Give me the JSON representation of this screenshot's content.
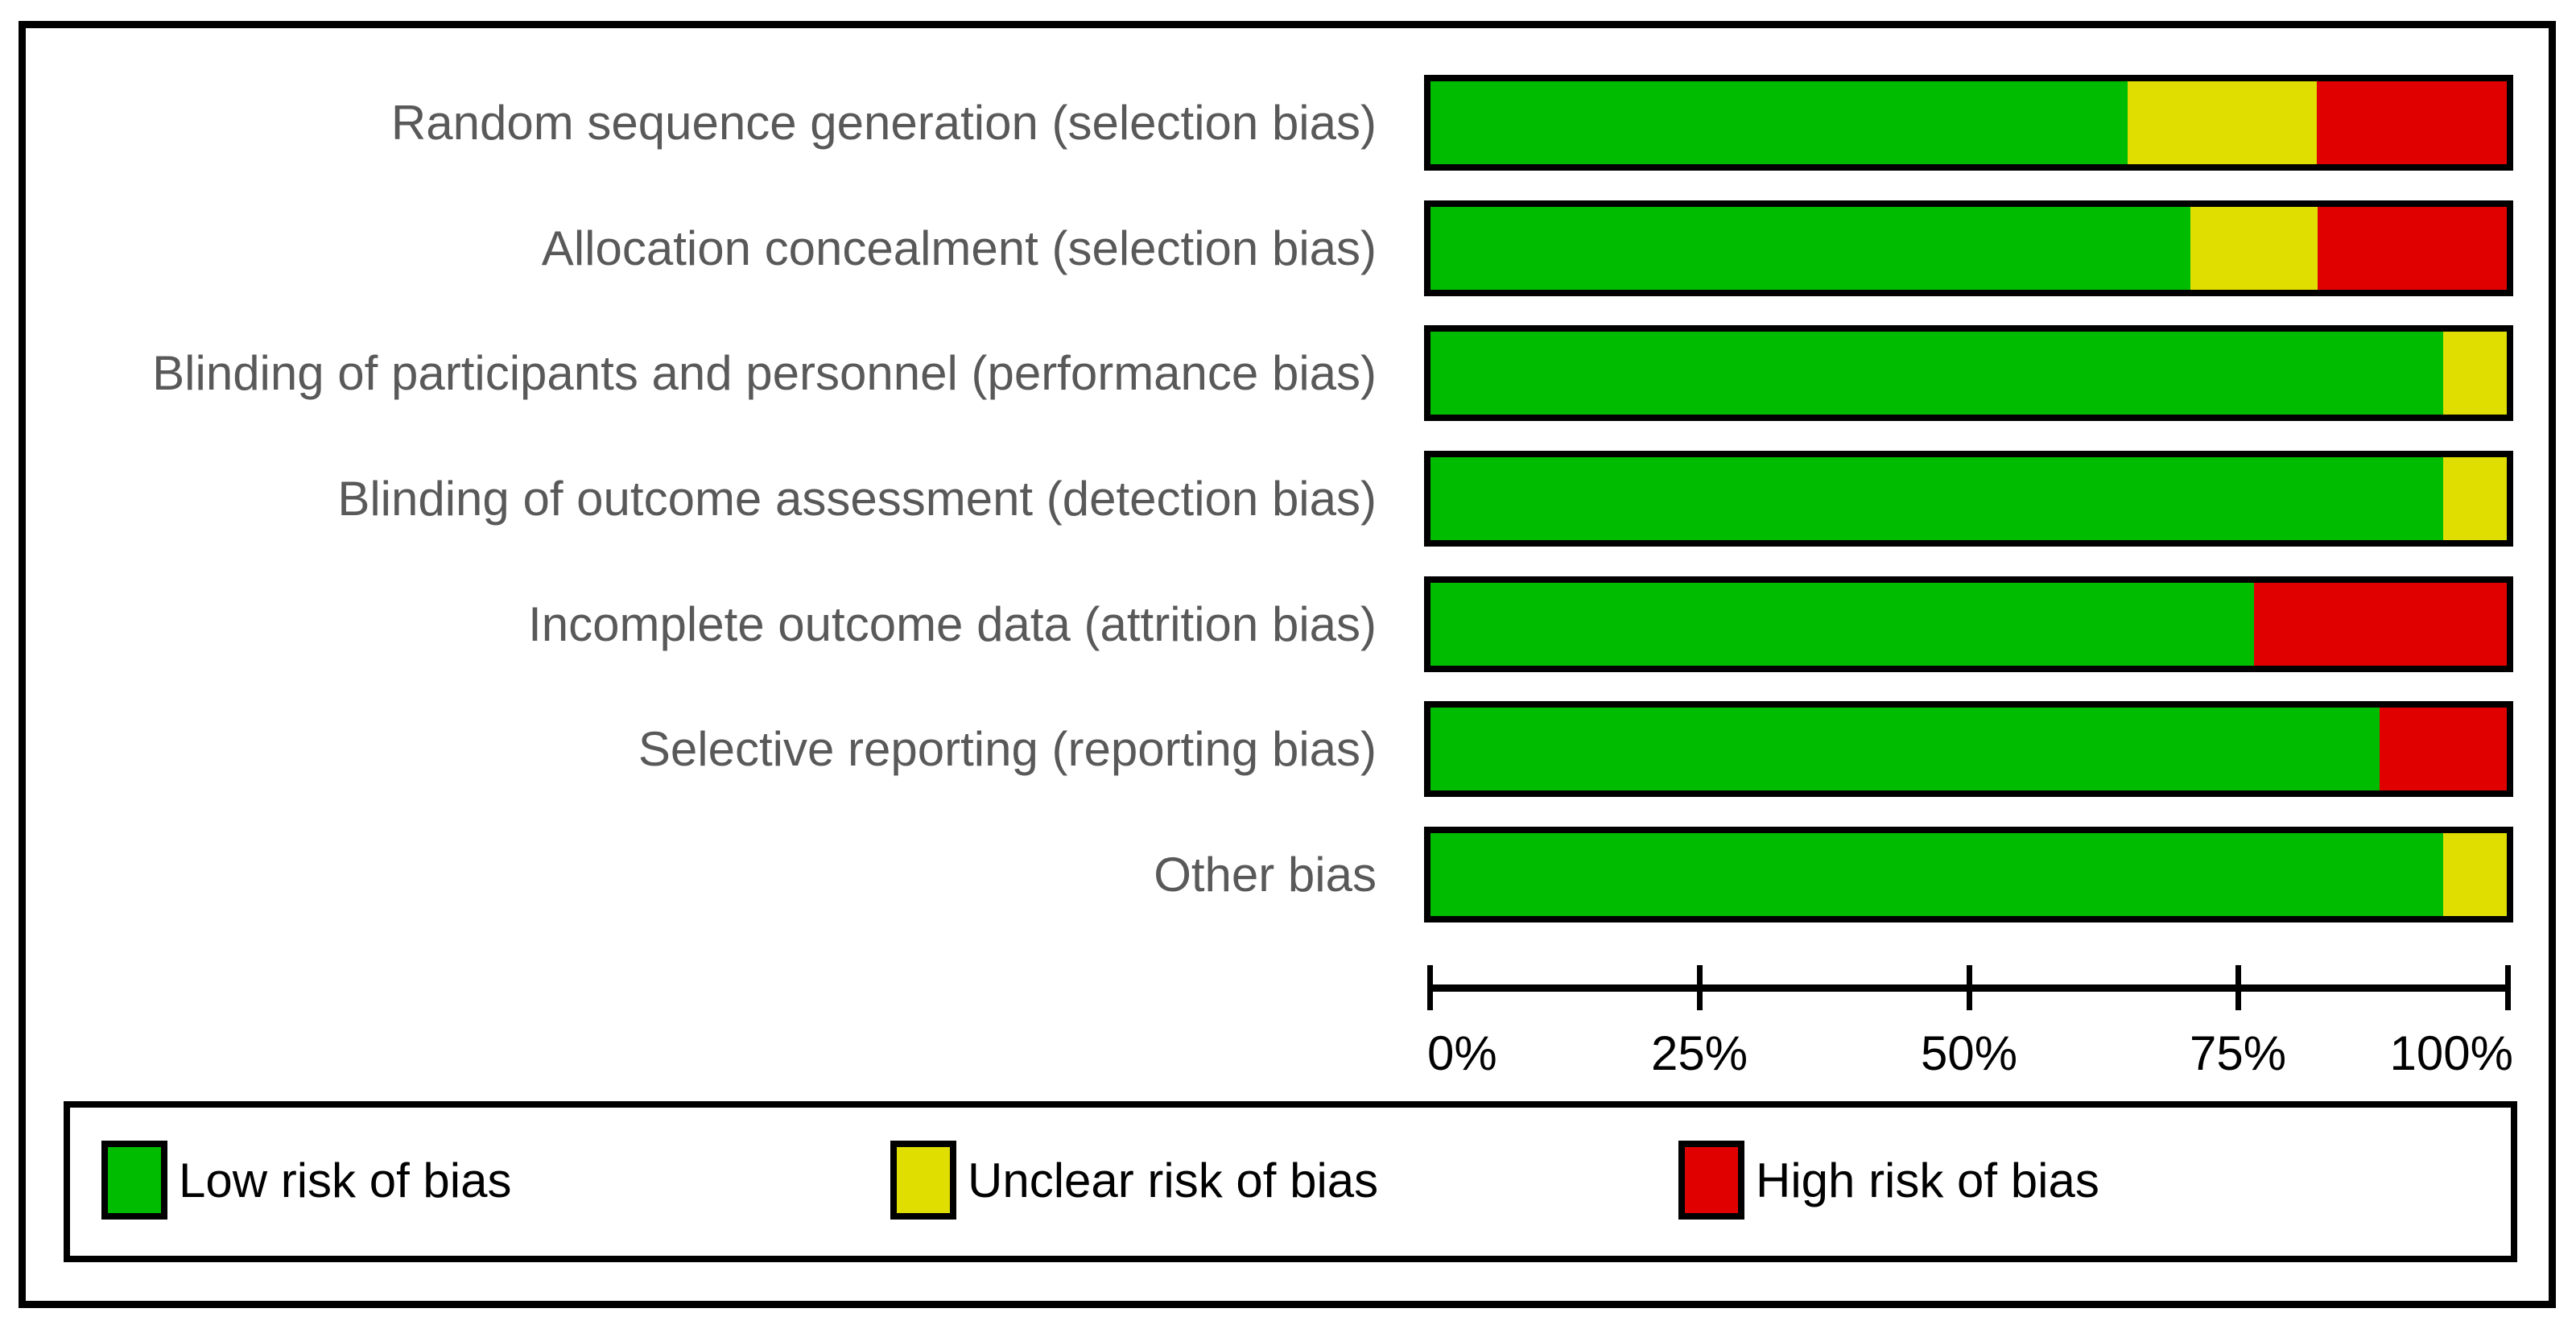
{
  "chart_data": {
    "type": "bar",
    "orientation": "horizontal",
    "stacked": true,
    "title": "",
    "xlabel": "",
    "ylabel": "",
    "categories": [
      "Random sequence generation (selection bias)",
      "Allocation concealment (selection bias)",
      "Blinding of participants and personnel (performance bias)",
      "Blinding of outcome assessment (detection bias)",
      "Incomplete outcome data (attrition bias)",
      "Selective reporting (reporting bias)",
      "Other bias"
    ],
    "series": [
      {
        "name": "Low risk of bias",
        "color": "#00BC00",
        "values_pct": [
          64.7,
          70.6,
          94.1,
          94.1,
          76.5,
          88.2,
          94.1
        ]
      },
      {
        "name": "Unclear risk of bias",
        "color": "#E0DE00",
        "values_pct": [
          17.6,
          11.8,
          5.9,
          5.9,
          0,
          0,
          5.9
        ]
      },
      {
        "name": "High risk of bias",
        "color": "#E00000",
        "values_pct": [
          17.6,
          17.6,
          0,
          0,
          23.5,
          11.8,
          0
        ]
      }
    ],
    "x_axis": {
      "range_pct": [
        0,
        100
      ],
      "ticks": [
        "0%",
        "25%",
        "50%",
        "75%",
        "100%"
      ]
    },
    "legend_position": "bottom",
    "colors": {
      "low": "#00BC00",
      "unclear": "#E0DE00",
      "high": "#E00000",
      "frame": "#000000",
      "row_label_text": "#595959",
      "axis_text": "#000000",
      "background": "#FFFFFF"
    }
  }
}
